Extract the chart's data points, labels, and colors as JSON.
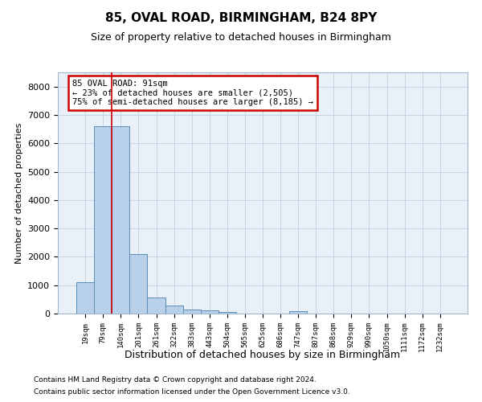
{
  "title": "85, OVAL ROAD, BIRMINGHAM, B24 8PY",
  "subtitle": "Size of property relative to detached houses in Birmingham",
  "xlabel": "Distribution of detached houses by size in Birmingham",
  "ylabel": "Number of detached properties",
  "footnote1": "Contains HM Land Registry data © Crown copyright and database right 2024.",
  "footnote2": "Contains public sector information licensed under the Open Government Licence v3.0.",
  "bar_labels": [
    "19sqm",
    "79sqm",
    "140sqm",
    "201sqm",
    "261sqm",
    "322sqm",
    "383sqm",
    "443sqm",
    "504sqm",
    "565sqm",
    "625sqm",
    "686sqm",
    "747sqm",
    "807sqm",
    "868sqm",
    "929sqm",
    "990sqm",
    "1050sqm",
    "1111sqm",
    "1172sqm",
    "1232sqm"
  ],
  "bar_values": [
    1100,
    6600,
    6600,
    2100,
    570,
    270,
    130,
    120,
    50,
    10,
    0,
    0,
    80,
    0,
    0,
    0,
    0,
    0,
    0,
    0,
    0
  ],
  "bar_color": "#b8d0ea",
  "bar_edge_color": "#5b8db8",
  "grid_color": "#c5d5e5",
  "bg_color": "#eaf0f8",
  "annotation_line1": "85 OVAL ROAD: 91sqm",
  "annotation_line2": "← 23% of detached houses are smaller (2,505)",
  "annotation_line3": "75% of semi-detached houses are larger (8,185) →",
  "annotation_box_color": "#cc0000",
  "vline_x": 1.5,
  "vline_color": "#cc0000",
  "ylim": [
    0,
    8500
  ],
  "yticks": [
    0,
    1000,
    2000,
    3000,
    4000,
    5000,
    6000,
    7000,
    8000
  ]
}
